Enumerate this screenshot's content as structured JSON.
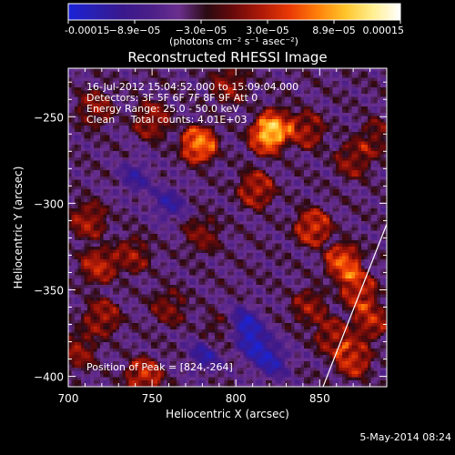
{
  "chart_data": {
    "type": "heatmap",
    "title": "Reconstructed RHESSI Image",
    "xlabel": "Heliocentric X (arcsec)",
    "ylabel": "Heliocentric Y (arcsec)",
    "xlim": [
      700,
      890
    ],
    "ylim": [
      -406,
      -222
    ],
    "x_ticks": [
      700,
      750,
      800,
      850
    ],
    "y_ticks": [
      -400,
      -350,
      -300,
      -250
    ],
    "x_tick_labels": [
      "700",
      "750",
      "800",
      "850"
    ],
    "y_tick_labels": [
      "-400",
      "-350",
      "-300",
      "-250"
    ],
    "colorbar": {
      "min": -0.00015,
      "max": 0.00015,
      "tick_labels": [
        "-0.00015",
        "−8.9e−05",
        "−3.0e−05",
        "3.0e−05",
        "8.9e−05",
        "0.00015"
      ],
      "label": "(photons cm⁻² s⁻¹ asec⁻²)",
      "colors": [
        "#1a22d8",
        "#2a1fae",
        "#3a188c",
        "#4b1f88",
        "#6a2f8e",
        "#2a0a12",
        "#6b0a0a",
        "#b01a08",
        "#ea3a05",
        "#ff7f0a",
        "#ffc42a",
        "#ffef90",
        "#ffffff"
      ]
    },
    "annotations": {
      "time": "16-Jul-2012 15:04:52.000 to 15:09:04.000",
      "detectors": "Detectors: 3F 5F 6F 7F 8F 9F  Att 0",
      "energy": "Energy Range: 25.0 - 50.0 keV",
      "method": "Clean     Total counts: 4.01E+03",
      "peak": "Position of Peak = [824,-264]"
    },
    "peak_position": [
      824,
      -264
    ],
    "limb_line": [
      [
        852,
        -406
      ],
      [
        890,
        -312
      ]
    ],
    "hot_spots": [
      {
        "x": 778,
        "y": -266,
        "value": 0.00013
      },
      {
        "x": 818,
        "y": -262,
        "value": 0.000105
      },
      {
        "x": 824,
        "y": -255,
        "value": 9e-05
      },
      {
        "x": 842,
        "y": -258,
        "value": 7e-05
      },
      {
        "x": 812,
        "y": -292,
        "value": 8e-05
      },
      {
        "x": 846,
        "y": -314,
        "value": 9.5e-05
      },
      {
        "x": 864,
        "y": -334,
        "value": 0.00011
      },
      {
        "x": 873,
        "y": -350,
        "value": 9e-05
      },
      {
        "x": 880,
        "y": -368,
        "value": 8e-05
      },
      {
        "x": 870,
        "y": -390,
        "value": 9e-05
      },
      {
        "x": 858,
        "y": -377,
        "value": 7e-05
      },
      {
        "x": 844,
        "y": -360,
        "value": 6e-05
      },
      {
        "x": 750,
        "y": -252,
        "value": 7e-05
      },
      {
        "x": 716,
        "y": -245,
        "value": 6e-05
      },
      {
        "x": 712,
        "y": -310,
        "value": 7e-05
      },
      {
        "x": 718,
        "y": -336,
        "value": 8e-05
      },
      {
        "x": 738,
        "y": -330,
        "value": 6e-05
      },
      {
        "x": 720,
        "y": -366,
        "value": 7e-05
      },
      {
        "x": 706,
        "y": -385,
        "value": 6e-05
      },
      {
        "x": 745,
        "y": -400,
        "value": 9e-05
      },
      {
        "x": 760,
        "y": -360,
        "value": 5e-05
      },
      {
        "x": 780,
        "y": -318,
        "value": 5e-05
      },
      {
        "x": 790,
        "y": -375,
        "value": 4e-05
      },
      {
        "x": 870,
        "y": -275,
        "value": 6e-05
      },
      {
        "x": 884,
        "y": -262,
        "value": 5e-05
      },
      {
        "x": 796,
        "y": -232,
        "value": 6e-05
      }
    ],
    "cold_spots": [
      {
        "x": 805,
        "y": -370,
        "value": -0.00012
      },
      {
        "x": 812,
        "y": -382,
        "value": -0.00011
      },
      {
        "x": 782,
        "y": -387,
        "value": -0.0001
      },
      {
        "x": 822,
        "y": -392,
        "value": -0.0001
      },
      {
        "x": 760,
        "y": -300,
        "value": -9e-05
      },
      {
        "x": 740,
        "y": -285,
        "value": -8e-05
      }
    ]
  },
  "footer": {
    "timestamp": "5-May-2014 08:24"
  }
}
